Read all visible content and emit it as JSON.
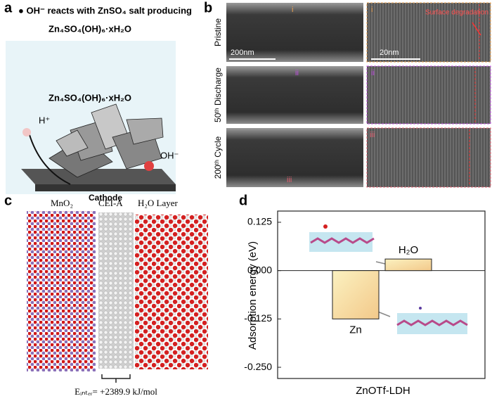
{
  "panel_a": {
    "label": "a",
    "caption": "● OH⁻ reacts with ZnSO₄ salt producing",
    "product": "Zn₄SO₄(OH)₆·xH₂O",
    "inner_label": "Zn₄SO₄(OH)₆·xH₂O",
    "proton": "H⁺",
    "hydroxide": "OH⁻",
    "substrate": "Cathode"
  },
  "panel_b": {
    "label": "b",
    "rows": [
      {
        "name": "Pristine",
        "marker": "i"
      },
      {
        "name": "50ᵗʰ Discharge",
        "marker": "ii"
      },
      {
        "name": "200ᵗʰ Cycle",
        "marker": "iii"
      }
    ],
    "scale_low": "200nm",
    "scale_high": "20nm",
    "annotation": "Surface degradation"
  },
  "panel_c": {
    "label": "c",
    "layers": [
      "MnO₂",
      "CEI-A",
      "H₂O Layer"
    ],
    "energy": "Eᵢₙₜₑᵣ= +2389.9 kJ/mol"
  },
  "chart_data": {
    "type": "bar",
    "label": "d",
    "y_label": "Adsorption energy (eV)",
    "x_label": "ZnOTf-LDH",
    "categories": [
      "Zn",
      "H₂O"
    ],
    "values": [
      -0.125,
      0.03
    ],
    "color": "#f6e7a6",
    "ylim": [
      -0.279,
      0.154
    ],
    "yticks": [
      0.125,
      {
        "value": 0,
        "label": "0.000"
      },
      -0.125,
      {
        "value": -0.25,
        "label": "-0.250"
      }
    ]
  }
}
